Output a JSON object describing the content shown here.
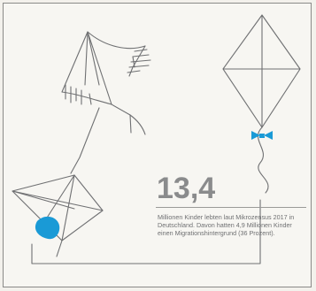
{
  "stat": {
    "value": "13,4",
    "caption": "Millionen Kinder lebten laut Mikrozensus 2017 in Deutschland. Davon hatten 4,9 Millionen Kinder einen Migrationshintergrund (36 Prozent)."
  },
  "illustration": {
    "kites": [
      "kite-open-top-left",
      "kite-diamond-right",
      "kite-diamond-bottom-left"
    ],
    "accent_color": "#1a9ad6",
    "line_color": "#6f7072",
    "bow_icon": "bow-icon",
    "knot_icon": "blob-icon"
  }
}
